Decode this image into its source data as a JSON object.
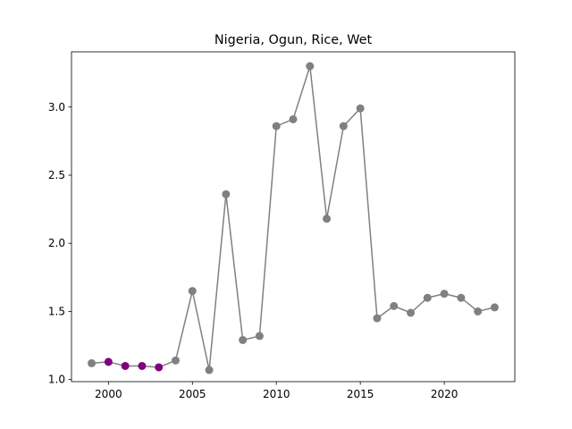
{
  "chart_data": {
    "type": "line",
    "title": "Nigeria, Ogun, Rice, Wet",
    "xlabel": "",
    "ylabel": "",
    "xlim": [
      1997.8,
      2024.2
    ],
    "ylim": [
      0.985,
      3.405
    ],
    "x_ticks": [
      2000,
      2005,
      2010,
      2015,
      2020
    ],
    "y_ticks": [
      1.0,
      1.5,
      2.0,
      2.5,
      3.0
    ],
    "y_tick_labels": [
      "1.0",
      "1.5",
      "2.0",
      "2.5",
      "3.0"
    ],
    "grid": false,
    "line_color": "#808080",
    "marker_color": "#808080",
    "highlight_color": "#800080",
    "series": [
      {
        "x": [
          1999,
          2000,
          2001,
          2002,
          2003,
          2004,
          2005,
          2006,
          2007,
          2008,
          2009,
          2010,
          2011,
          2012,
          2013,
          2014,
          2015,
          2016,
          2017,
          2018,
          2019,
          2020,
          2021,
          2022,
          2023
        ],
        "values": [
          1.12,
          1.13,
          1.1,
          1.1,
          1.09,
          1.14,
          1.65,
          1.07,
          2.36,
          1.29,
          1.32,
          2.86,
          2.91,
          3.3,
          2.18,
          2.86,
          2.99,
          1.45,
          1.54,
          1.49,
          1.6,
          1.63,
          1.6,
          1.5,
          1.53
        ],
        "highlight_x": [
          2000,
          2001,
          2002,
          2003
        ]
      }
    ]
  }
}
